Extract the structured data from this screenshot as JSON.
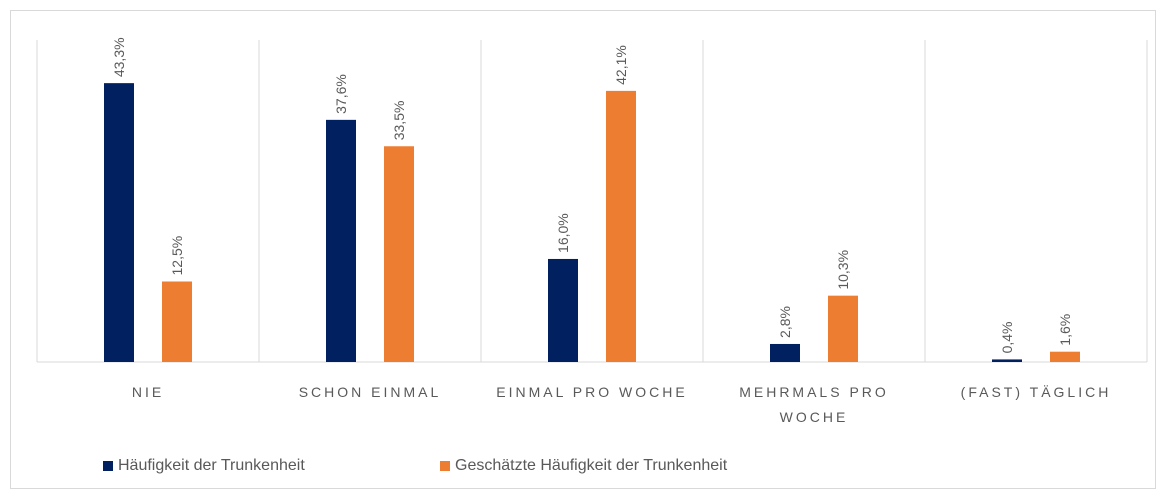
{
  "chart_data": {
    "type": "bar",
    "categories": [
      "NIE",
      "SCHON EINMAL",
      "EINMAL PRO WOCHE",
      "MEHRMALS PRO WOCHE",
      "(FAST) TÄGLICH"
    ],
    "series": [
      {
        "name": "Häufigkeit der Trunkenheit",
        "color": "#002060",
        "values": [
          43.3,
          37.6,
          16.0,
          2.8,
          0.4
        ],
        "value_labels": [
          "43,3%",
          "37,6%",
          "16,0%",
          "2,8%",
          "0,4%"
        ]
      },
      {
        "name": "Geschätzte Häufigkeit der Trunkenheit",
        "color": "#ED7D31",
        "values": [
          12.5,
          33.5,
          42.1,
          10.3,
          1.6
        ],
        "value_labels": [
          "12,5%",
          "33,5%",
          "42,1%",
          "10,3%",
          "1,6%"
        ]
      }
    ],
    "ylim": [
      0,
      50
    ],
    "legend": "bottom"
  }
}
